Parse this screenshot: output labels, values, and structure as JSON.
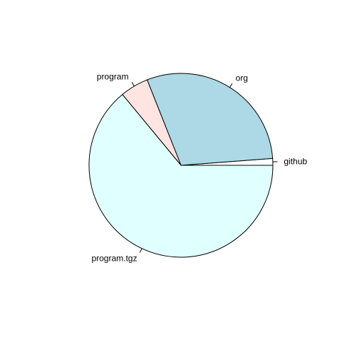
{
  "chart_data": {
    "type": "pie",
    "title": "",
    "start_angle_deg": 0,
    "direction": "counterclockwise",
    "slices": [
      {
        "label": "github",
        "value": 1.2,
        "color": "#FFFFFF"
      },
      {
        "label": "org",
        "value": 29.8,
        "color": "#ADD8E6"
      },
      {
        "label": "program",
        "value": 5.0,
        "color": "#FFE4E1"
      },
      {
        "label": "program.tgz",
        "value": 64.0,
        "color": "#E0FFFF"
      }
    ]
  }
}
